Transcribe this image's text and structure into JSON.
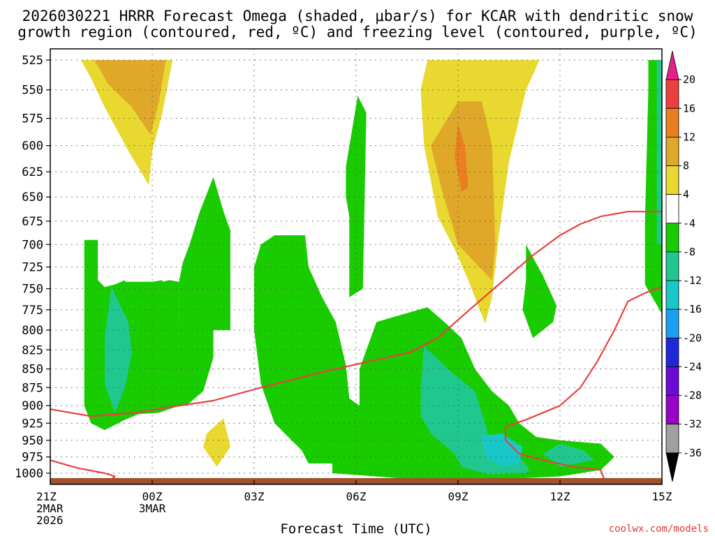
{
  "chart_data": {
    "type": "heatmap",
    "title_lines": [
      "2026030221 HRRR Forecast Omega (shaded, μbar/s) for KCAR with dendritic snow",
      "growth region (contoured, red, ºC) and freezing level (contoured, purple, ºC)"
    ],
    "xlabel": "Forecast Time (UTC)",
    "ylabel": "",
    "x_range_hours": [
      0,
      18
    ],
    "y_range_hpa": [
      1000,
      525
    ],
    "y_scale": "log-pressure (inverted)",
    "grid": "dotted",
    "y_ticks": [
      525,
      550,
      575,
      600,
      625,
      650,
      675,
      700,
      725,
      750,
      775,
      800,
      825,
      850,
      875,
      900,
      925,
      950,
      975,
      1000
    ],
    "x_ticks": [
      {
        "hour": 0,
        "lines": [
          "21Z",
          "2MAR",
          "2026"
        ]
      },
      {
        "hour": 3,
        "lines": [
          "00Z",
          "3MAR"
        ]
      },
      {
        "hour": 6,
        "lines": [
          "03Z"
        ]
      },
      {
        "hour": 9,
        "lines": [
          "06Z"
        ]
      },
      {
        "hour": 12,
        "lines": [
          "09Z"
        ]
      },
      {
        "hour": 15,
        "lines": [
          "12Z"
        ]
      },
      {
        "hour": 18,
        "lines": [
          "15Z"
        ]
      }
    ],
    "colorbar": {
      "levels": [
        -36,
        -32,
        -28,
        -24,
        -20,
        -16,
        -12,
        -8,
        -4,
        4,
        8,
        12,
        16,
        20
      ],
      "colors": [
        "#000000",
        "#a0a0a0",
        "#9a00c8",
        "#6a0ad2",
        "#1e28d8",
        "#1aa0f0",
        "#18c8c8",
        "#20c890",
        "#18cc00",
        "#ffffff",
        "#e8d830",
        "#e0a828",
        "#e88020",
        "#ec4040",
        "#e8208a"
      ]
    },
    "fill_colors": {
      "yellow": "#e8d830",
      "orange": "#e0a828",
      "dark_orange": "#e88020",
      "green": "#18cc00",
      "teal": "#20c890",
      "cyan": "#18c8c8",
      "ground": "#a0522d",
      "line_red": "#e84040"
    },
    "regions": [
      {
        "fill": "yellow",
        "points": [
          [
            0.9,
            525
          ],
          [
            3.6,
            525
          ],
          [
            3.3,
            570
          ],
          [
            3.0,
            605
          ],
          [
            2.9,
            638
          ],
          [
            2.3,
            605
          ],
          [
            1.6,
            565
          ],
          [
            1.2,
            540
          ]
        ]
      },
      {
        "fill": "orange",
        "points": [
          [
            1.3,
            525
          ],
          [
            3.4,
            525
          ],
          [
            3.2,
            560
          ],
          [
            2.95,
            590
          ],
          [
            2.4,
            565
          ],
          [
            1.7,
            545
          ]
        ]
      },
      {
        "fill": "yellow",
        "points": [
          [
            4.6,
            940
          ],
          [
            5.1,
            918
          ],
          [
            5.3,
            960
          ],
          [
            4.9,
            990
          ],
          [
            4.5,
            960
          ]
        ]
      },
      {
        "fill": "green",
        "points": [
          [
            1.0,
            695
          ],
          [
            1.4,
            695
          ],
          [
            1.4,
            740
          ],
          [
            1.6,
            748
          ],
          [
            1.9,
            745
          ],
          [
            2.2,
            740
          ],
          [
            2.2,
            742
          ],
          [
            3.0,
            742
          ],
          [
            3.3,
            740
          ],
          [
            3.3,
            742
          ],
          [
            3.5,
            740
          ],
          [
            3.8,
            742
          ],
          [
            3.8,
            740
          ],
          [
            3.8,
            738
          ],
          [
            3.9,
            738
          ],
          [
            3.9,
            738
          ],
          [
            3.8,
            742
          ],
          [
            3.8,
            790
          ],
          [
            3.9,
            865
          ],
          [
            3.8,
            900
          ],
          [
            3.2,
            910
          ],
          [
            2.6,
            912
          ],
          [
            2.2,
            920
          ],
          [
            1.6,
            935
          ],
          [
            1.2,
            925
          ],
          [
            1.0,
            900
          ]
        ]
      },
      {
        "fill": "green",
        "points": [
          [
            3.8,
            742
          ],
          [
            3.8,
            740
          ],
          [
            3.9,
            720
          ],
          [
            4.1,
            700
          ],
          [
            4.4,
            665
          ],
          [
            4.8,
            630
          ],
          [
            5.1,
            665
          ],
          [
            5.3,
            685
          ],
          [
            5.3,
            800
          ],
          [
            4.8,
            800
          ],
          [
            4.8,
            835
          ],
          [
            4.5,
            880
          ],
          [
            4.0,
            900
          ],
          [
            3.8,
            900
          ]
        ]
      },
      {
        "fill": "teal",
        "points": [
          [
            1.8,
            748
          ],
          [
            2.3,
            790
          ],
          [
            2.4,
            830
          ],
          [
            2.2,
            875
          ],
          [
            1.9,
            910
          ],
          [
            1.6,
            870
          ],
          [
            1.6,
            810
          ]
        ]
      },
      {
        "fill": "green",
        "points": [
          [
            8.8,
            760
          ],
          [
            9.2,
            750
          ],
          [
            9.3,
            570
          ],
          [
            9.05,
            555
          ],
          [
            8.7,
            620
          ],
          [
            8.7,
            650
          ],
          [
            8.8,
            670
          ]
        ]
      },
      {
        "fill": "green",
        "points": [
          [
            6.0,
            725
          ],
          [
            6.2,
            700
          ],
          [
            6.6,
            690
          ],
          [
            7.5,
            690
          ],
          [
            7.6,
            725
          ],
          [
            8.0,
            760
          ],
          [
            8.4,
            790
          ],
          [
            8.7,
            845
          ],
          [
            8.8,
            890
          ],
          [
            9.1,
            900
          ],
          [
            9.1,
            850
          ],
          [
            9.6,
            790
          ],
          [
            10.0,
            785
          ],
          [
            11.1,
            772
          ],
          [
            11.6,
            790
          ],
          [
            12.1,
            810
          ],
          [
            12.5,
            850
          ],
          [
            13.0,
            880
          ],
          [
            13.5,
            900
          ],
          [
            13.8,
            925
          ],
          [
            14.3,
            945
          ],
          [
            15.0,
            950
          ],
          [
            16.2,
            955
          ],
          [
            16.6,
            975
          ],
          [
            16.2,
            995
          ],
          [
            15.0,
            1005
          ],
          [
            13.0,
            1010
          ],
          [
            11.5,
            1010
          ],
          [
            10.3,
            1008
          ],
          [
            8.3,
            1000
          ],
          [
            8.3,
            985
          ],
          [
            7.6,
            985
          ],
          [
            7.4,
            965
          ],
          [
            7.0,
            945
          ],
          [
            6.6,
            925
          ],
          [
            6.2,
            870
          ],
          [
            6.0,
            800
          ]
        ]
      },
      {
        "fill": "teal",
        "points": [
          [
            11.0,
            820
          ],
          [
            11.7,
            850
          ],
          [
            12.5,
            880
          ],
          [
            12.8,
            925
          ],
          [
            12.9,
            945
          ],
          [
            13.1,
            960
          ],
          [
            13.5,
            975
          ],
          [
            13.9,
            980
          ],
          [
            14.1,
            995
          ],
          [
            14.0,
            1000
          ],
          [
            12.9,
            1002
          ],
          [
            12.1,
            990
          ],
          [
            11.9,
            970
          ],
          [
            11.2,
            940
          ],
          [
            10.9,
            915
          ],
          [
            10.9,
            880
          ]
        ]
      },
      {
        "fill": "cyan",
        "points": [
          [
            12.7,
            943
          ],
          [
            13.3,
            940
          ],
          [
            13.9,
            960
          ],
          [
            13.8,
            985
          ],
          [
            13.3,
            990
          ],
          [
            12.8,
            975
          ]
        ]
      },
      {
        "fill": "teal",
        "points": [
          [
            14.5,
            970
          ],
          [
            15.0,
            955
          ],
          [
            15.7,
            965
          ],
          [
            16.0,
            980
          ],
          [
            15.0,
            990
          ]
        ]
      },
      {
        "fill": "yellow",
        "points": [
          [
            11.1,
            525
          ],
          [
            14.4,
            525
          ],
          [
            14.0,
            550
          ],
          [
            13.5,
            615
          ],
          [
            13.2,
            690
          ],
          [
            13.0,
            760
          ],
          [
            12.8,
            792
          ],
          [
            12.3,
            740
          ],
          [
            11.9,
            705
          ],
          [
            11.4,
            670
          ],
          [
            11.0,
            600
          ],
          [
            10.9,
            550
          ]
        ]
      },
      {
        "fill": "orange",
        "points": [
          [
            11.2,
            600
          ],
          [
            12.0,
            560
          ],
          [
            12.7,
            560
          ],
          [
            13.0,
            600
          ],
          [
            13.1,
            700
          ],
          [
            13.0,
            740
          ],
          [
            12.5,
            720
          ],
          [
            12.0,
            700
          ],
          [
            11.5,
            640
          ]
        ]
      },
      {
        "fill": "dark_orange",
        "points": [
          [
            12.0,
            580
          ],
          [
            12.2,
            600
          ],
          [
            12.3,
            640
          ],
          [
            12.1,
            645
          ],
          [
            11.9,
            610
          ]
        ]
      },
      {
        "fill": "green",
        "points": [
          [
            14.0,
            700
          ],
          [
            14.5,
            735
          ],
          [
            14.9,
            770
          ],
          [
            14.8,
            790
          ],
          [
            14.2,
            810
          ],
          [
            13.9,
            775
          ],
          [
            14.0,
            740
          ]
        ]
      },
      {
        "fill": "green",
        "points": [
          [
            17.6,
            525
          ],
          [
            17.8,
            525
          ],
          [
            18.0,
            525
          ],
          [
            18.0,
            780
          ],
          [
            17.5,
            745
          ],
          [
            17.5,
            675
          ],
          [
            17.6,
            550
          ]
        ]
      },
      {
        "fill": "teal",
        "points": [
          [
            17.85,
            525
          ],
          [
            18.0,
            525
          ],
          [
            18.0,
            700
          ],
          [
            17.85,
            700
          ]
        ]
      }
    ],
    "contours": [
      {
        "color": "line_red",
        "points": [
          [
            0,
            905
          ],
          [
            1.2,
            915
          ],
          [
            2.5,
            910
          ],
          [
            3.8,
            900
          ],
          [
            4.8,
            893
          ],
          [
            6.2,
            875
          ],
          [
            7.5,
            860
          ],
          [
            8.2,
            852
          ],
          [
            9.6,
            838
          ],
          [
            10.6,
            828
          ],
          [
            11.4,
            810
          ],
          [
            12.2,
            780
          ],
          [
            13.2,
            745
          ],
          [
            14.2,
            712
          ],
          [
            15.0,
            690
          ],
          [
            15.6,
            678
          ],
          [
            16.2,
            670
          ],
          [
            17.0,
            665
          ],
          [
            18.0,
            665
          ]
        ]
      },
      {
        "color": "line_red",
        "points": [
          [
            0,
            980
          ],
          [
            0.8,
            992
          ],
          [
            1.6,
            1000
          ],
          [
            1.9,
            1005
          ],
          [
            1.8,
            1010
          ]
        ]
      },
      {
        "color": "line_red",
        "points": [
          [
            16.3,
            1010
          ],
          [
            16.2,
            995
          ],
          [
            15.4,
            990
          ],
          [
            14.5,
            980
          ],
          [
            13.8,
            970
          ],
          [
            13.4,
            950
          ],
          [
            13.4,
            930
          ],
          [
            14.0,
            920
          ],
          [
            15.0,
            900
          ],
          [
            15.6,
            875
          ],
          [
            16.1,
            840
          ],
          [
            16.6,
            800
          ],
          [
            17.0,
            765
          ],
          [
            17.5,
            755
          ],
          [
            18.0,
            748
          ]
        ]
      }
    ]
  },
  "credit": "coolwx.com/models"
}
